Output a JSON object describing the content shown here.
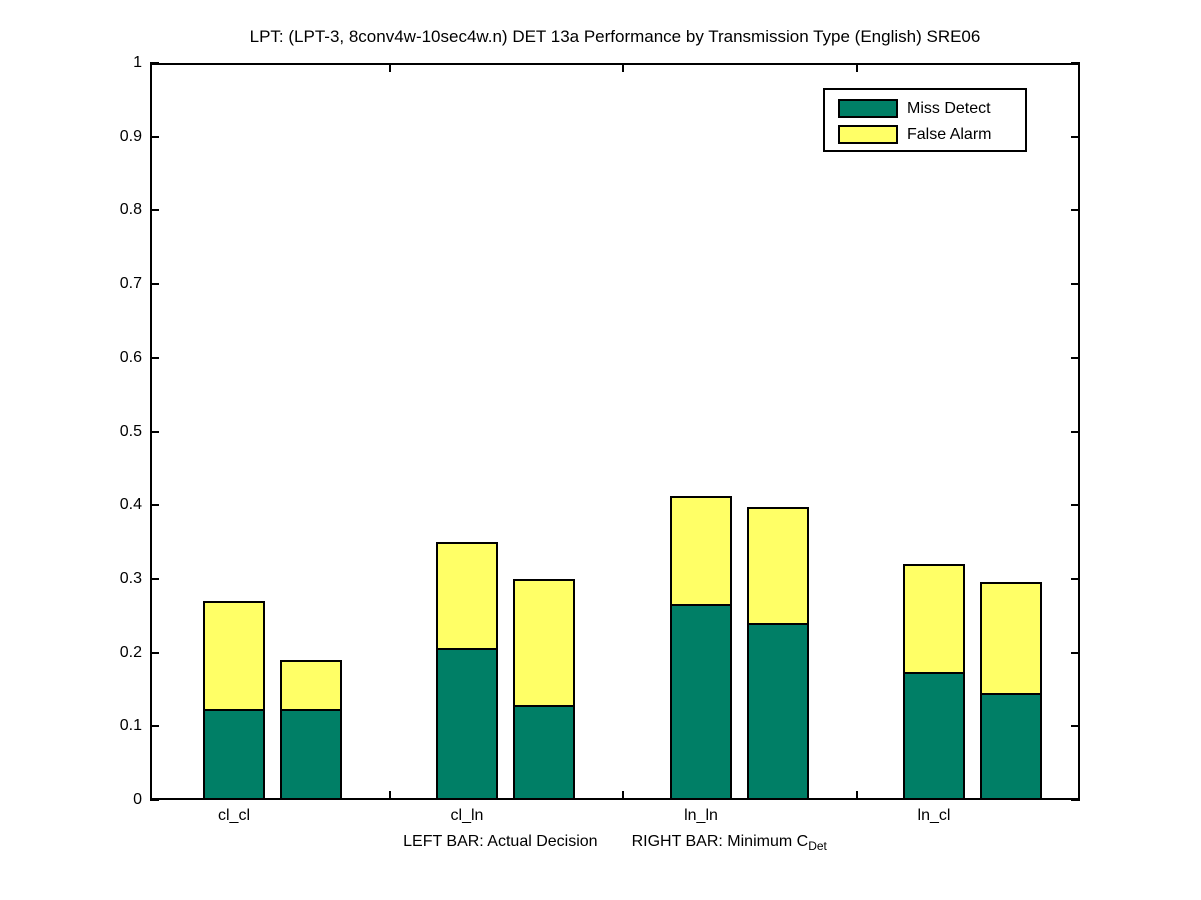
{
  "title": "LPT: (LPT-3, 8conv4w-10sec4w.n) DET 13a Performance by Transmission Type (English) SRE06",
  "colors": {
    "miss_detect": "#007F66",
    "false_alarm": "#FFFF66",
    "axis": "#000000",
    "background": "#FFFFFF"
  },
  "legend": {
    "items": [
      {
        "label": "Miss Detect",
        "color": "#007F66"
      },
      {
        "label": "False Alarm",
        "color": "#FFFF66"
      }
    ]
  },
  "y_axis": {
    "tick_labels": [
      "0",
      "0.1",
      "0.2",
      "0.3",
      "0.4",
      "0.5",
      "0.6",
      "0.7",
      "0.8",
      "0.9",
      "1"
    ],
    "tick_values": [
      0,
      0.1,
      0.2,
      0.3,
      0.4,
      0.5,
      0.6,
      0.7,
      0.8,
      0.9,
      1
    ]
  },
  "x_axis": {
    "tick_labels": [
      "cl_cl",
      "cl_ln",
      "ln_ln",
      "ln_cl"
    ],
    "label_left": "LEFT BAR: Actual Decision",
    "label_right": "RIGHT BAR: Minimum C",
    "label_subscript": "Det"
  },
  "chart_data": {
    "type": "bar",
    "stacked": true,
    "title": "LPT: (LPT-3, 8conv4w-10sec4w.n) DET 13a Performance by Transmission Type (English) SRE06",
    "categories": [
      "cl_cl",
      "cl_ln",
      "ln_ln",
      "ln_cl"
    ],
    "ylim": [
      0,
      1
    ],
    "ytick_step": 0.1,
    "grid": false,
    "legend_entries": [
      "Miss Detect",
      "False Alarm"
    ],
    "legend_position": "top-right",
    "xlabel": "LEFT BAR: Actual Decision    RIGHT BAR: Minimum C_Det",
    "bars_per_category": [
      {
        "name": "Actual Decision",
        "position": "left",
        "series": [
          {
            "name": "Miss Detect",
            "values": [
              0.124,
              0.206,
              0.266,
              0.174
            ]
          },
          {
            "name": "False Alarm",
            "values": [
              0.146,
              0.144,
              0.146,
              0.147
            ]
          }
        ],
        "totals": [
          0.27,
          0.35,
          0.412,
          0.321
        ]
      },
      {
        "name": "Minimum C_Det",
        "position": "right",
        "series": [
          {
            "name": "Miss Detect",
            "values": [
              0.124,
              0.129,
              0.24,
              0.145
            ]
          },
          {
            "name": "False Alarm",
            "values": [
              0.066,
              0.171,
              0.158,
              0.151
            ]
          }
        ],
        "totals": [
          0.19,
          0.3,
          0.398,
          0.296
        ]
      }
    ]
  }
}
